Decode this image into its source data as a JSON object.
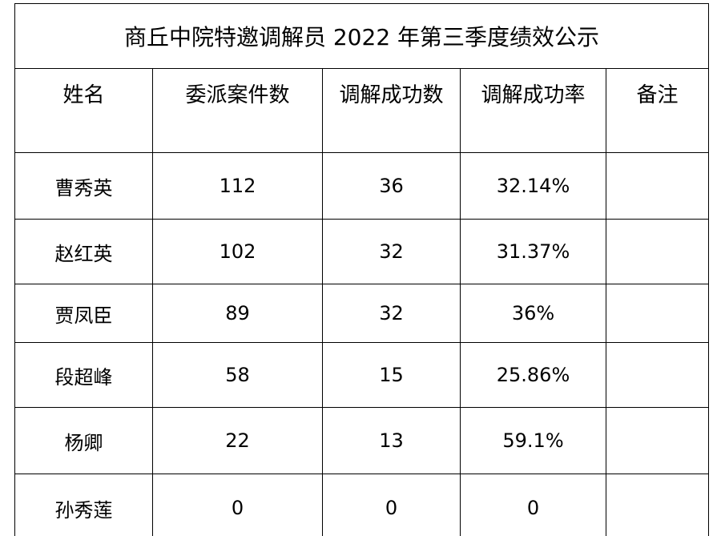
{
  "table": {
    "title": "商丘中院特邀调解员 2022 年第三季度绩效公示",
    "headers": [
      "姓名",
      "委派案件数",
      "调解成功数",
      "调解成功率",
      "备注"
    ],
    "rows": [
      {
        "name": "曹秀英",
        "assigned": "112",
        "success": "36",
        "rate": "32.14%",
        "note": ""
      },
      {
        "name": "赵红英",
        "assigned": "102",
        "success": "32",
        "rate": "31.37%",
        "note": ""
      },
      {
        "name": "贾凤臣",
        "assigned": "89",
        "success": "32",
        "rate": "36%",
        "note": ""
      },
      {
        "name": "段超峰",
        "assigned": "58",
        "success": "15",
        "rate": "25.86%",
        "note": ""
      },
      {
        "name": "杨卿",
        "assigned": "22",
        "success": "13",
        "rate": "59.1%",
        "note": ""
      },
      {
        "name": "孙秀莲",
        "assigned": "0",
        "success": "0",
        "rate": "0",
        "note": ""
      }
    ]
  }
}
